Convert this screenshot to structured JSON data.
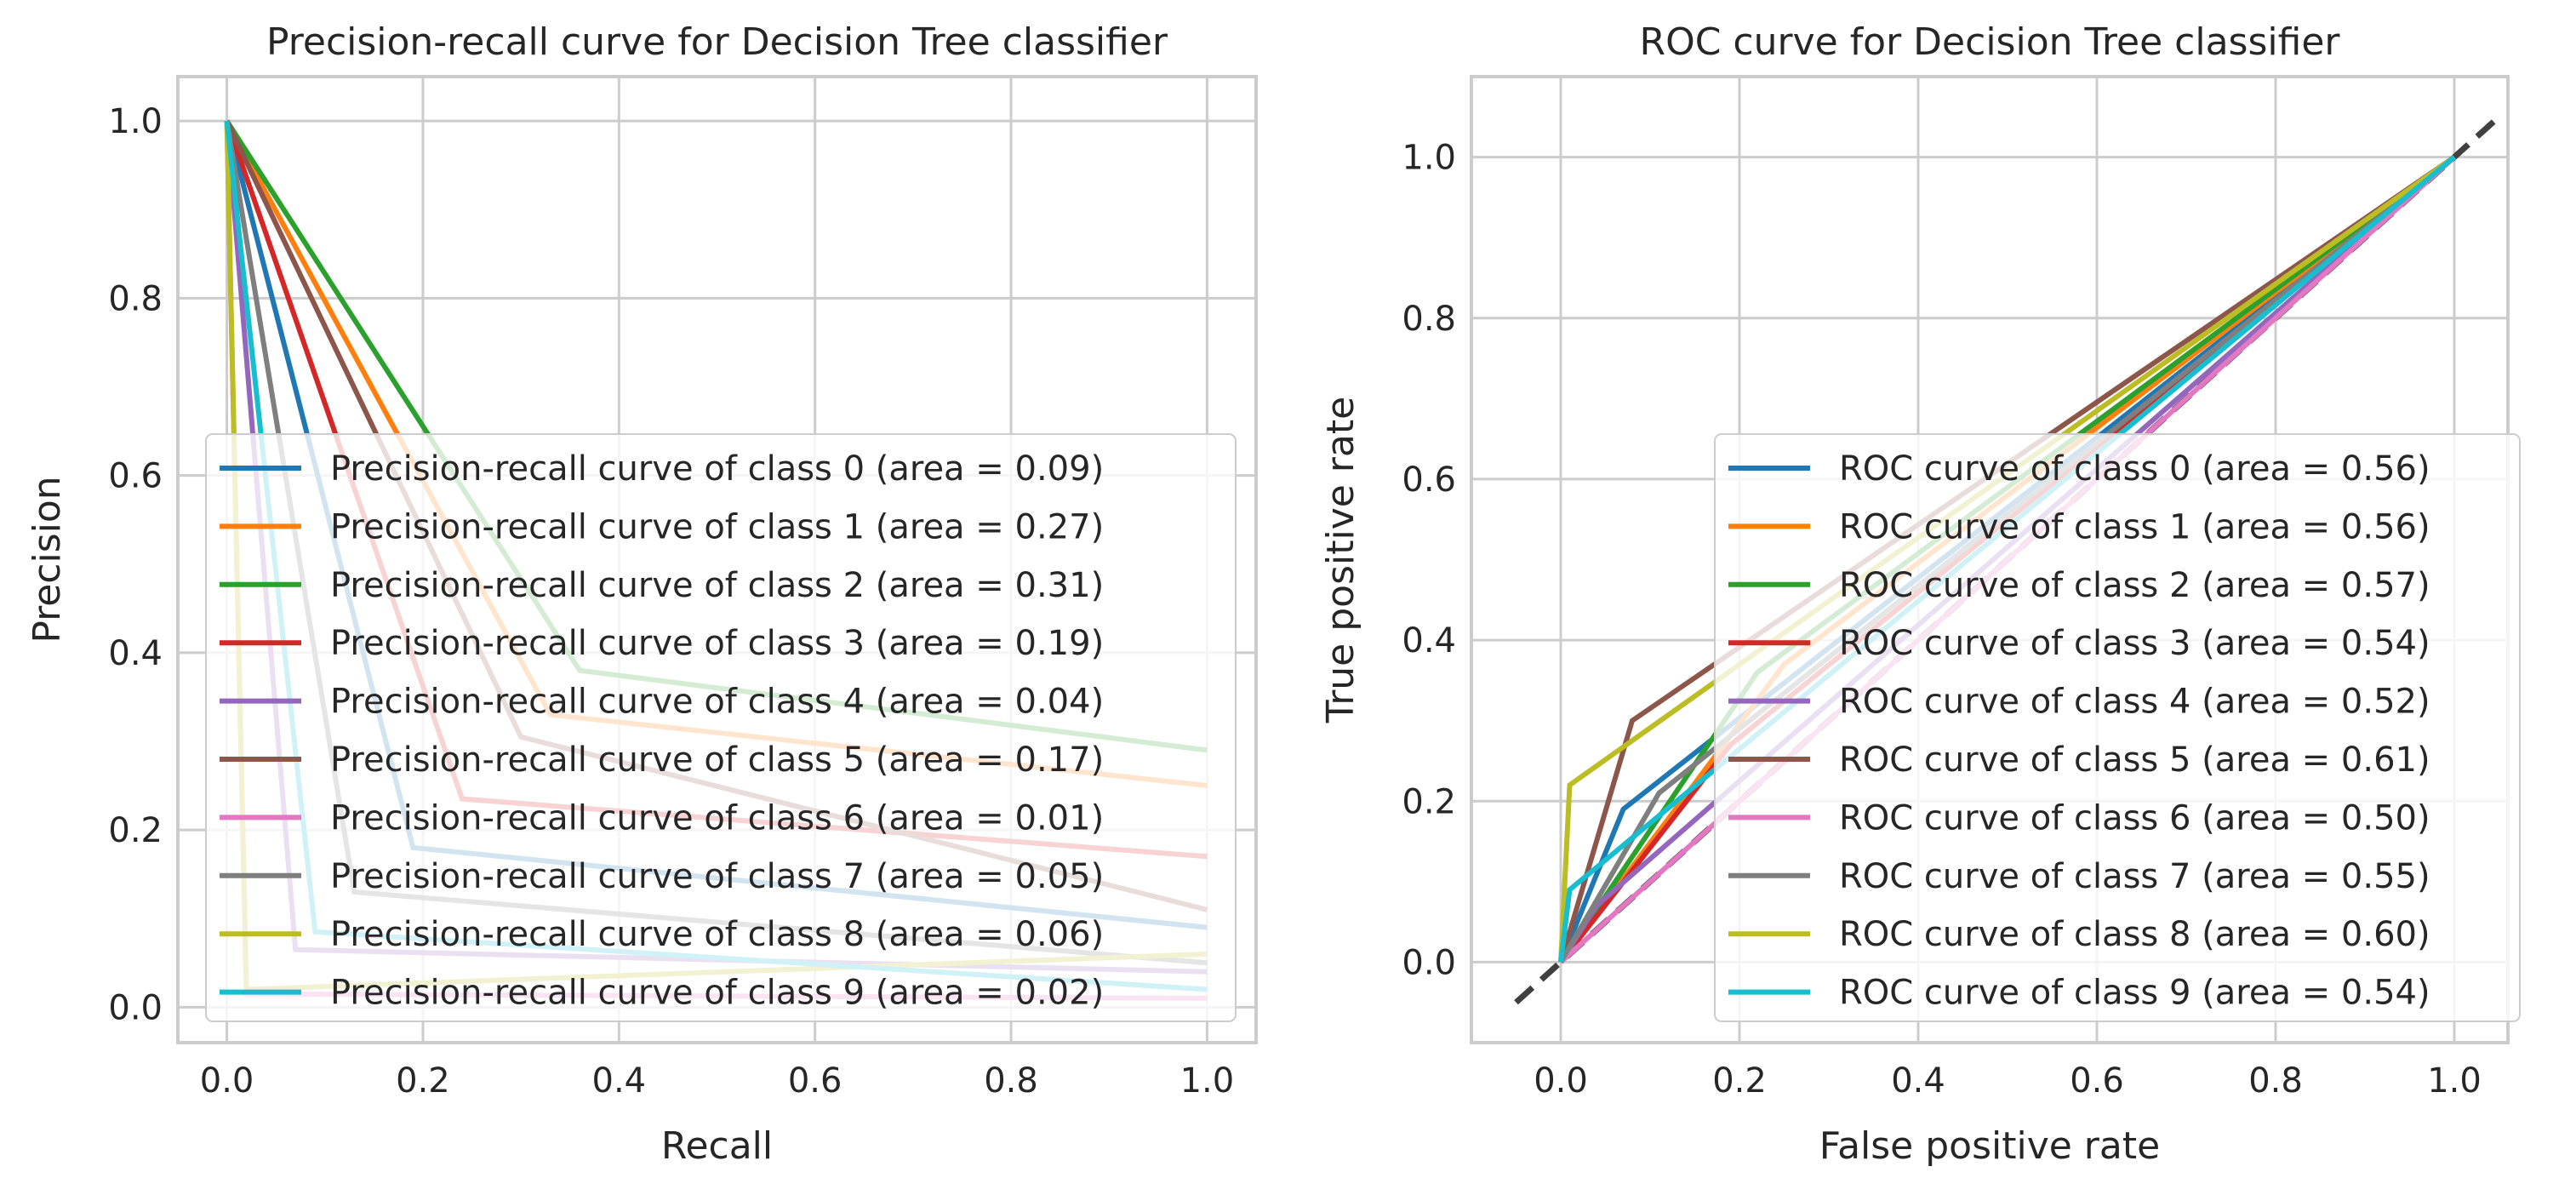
{
  "chart_data": [
    {
      "type": "line",
      "title": "Precision-recall curve for Decision Tree classifier",
      "xlabel": "Recall",
      "ylabel": "Precision",
      "xlim": [
        -0.05,
        1.05
      ],
      "ylim": [
        -0.04,
        1.05
      ],
      "xticks": [
        "0.0",
        "0.2",
        "0.4",
        "0.6",
        "0.8",
        "1.0"
      ],
      "yticks": [
        "0.0",
        "0.2",
        "0.4",
        "0.6",
        "0.8",
        "1.0"
      ],
      "grid": true,
      "legend_position": "lower-right",
      "series": [
        {
          "name": "Precision-recall curve of class 0 (area = 0.09)",
          "color": "#1f77b4",
          "x": [
            0.0,
            0.19,
            1.0
          ],
          "y": [
            1.0,
            0.18,
            0.09
          ]
        },
        {
          "name": "Precision-recall curve of class 1 (area = 0.27)",
          "color": "#ff7f0e",
          "x": [
            0.0,
            0.33,
            1.0
          ],
          "y": [
            1.0,
            0.33,
            0.25
          ]
        },
        {
          "name": "Precision-recall curve of class 2 (area = 0.31)",
          "color": "#2ca02c",
          "x": [
            0.0,
            0.36,
            1.0
          ],
          "y": [
            1.0,
            0.38,
            0.29
          ]
        },
        {
          "name": "Precision-recall curve of class 3 (area = 0.19)",
          "color": "#d62728",
          "x": [
            0.0,
            0.24,
            1.0
          ],
          "y": [
            1.0,
            0.235,
            0.17
          ]
        },
        {
          "name": "Precision-recall curve of class 4 (area = 0.04)",
          "color": "#9467bd",
          "x": [
            0.0,
            0.07,
            1.0
          ],
          "y": [
            1.0,
            0.065,
            0.04
          ]
        },
        {
          "name": "Precision-recall curve of class 5 (area = 0.17)",
          "color": "#8c564b",
          "x": [
            0.0,
            0.3,
            1.0
          ],
          "y": [
            1.0,
            0.305,
            0.11
          ]
        },
        {
          "name": "Precision-recall curve of class 6 (area = 0.01)",
          "color": "#e377c2",
          "x": [
            0.0,
            0.02,
            1.0
          ],
          "y": [
            1.0,
            0.015,
            0.01
          ]
        },
        {
          "name": "Precision-recall curve of class 7 (area = 0.05)",
          "color": "#7f7f7f",
          "x": [
            0.0,
            0.13,
            1.0
          ],
          "y": [
            1.0,
            0.13,
            0.05
          ]
        },
        {
          "name": "Precision-recall curve of class 8 (area = 0.06)",
          "color": "#bcbd22",
          "x": [
            0.0,
            0.02,
            1.0
          ],
          "y": [
            1.0,
            0.02,
            0.06
          ]
        },
        {
          "name": "Precision-recall curve of class 9 (area = 0.02)",
          "color": "#17becf",
          "x": [
            0.0,
            0.09,
            1.0
          ],
          "y": [
            1.0,
            0.085,
            0.02
          ]
        }
      ]
    },
    {
      "type": "line",
      "title": "ROC curve for Decision Tree classifier",
      "xlabel": "False positive rate",
      "ylabel": "True positive rate",
      "xlim": [
        -0.1,
        1.06
      ],
      "ylim": [
        -0.1,
        1.1
      ],
      "xticks": [
        "0.0",
        "0.2",
        "0.4",
        "0.6",
        "0.8",
        "1.0"
      ],
      "yticks": [
        "0.0",
        "0.2",
        "0.4",
        "0.6",
        "0.8",
        "1.0"
      ],
      "grid": true,
      "legend_position": "lower-right",
      "diagonal": {
        "color": "#404040",
        "x": [
          -0.05,
          1.05
        ],
        "y": [
          -0.05,
          1.05
        ]
      },
      "series": [
        {
          "name": "ROC curve of class 0 (area = 0.56)",
          "color": "#1f77b4",
          "x": [
            0.0,
            0.07,
            1.0
          ],
          "y": [
            0.0,
            0.19,
            1.0
          ]
        },
        {
          "name": "ROC curve of class 1 (area = 0.56)",
          "color": "#ff7f0e",
          "x": [
            0.0,
            0.25,
            1.0
          ],
          "y": [
            0.0,
            0.37,
            1.0
          ]
        },
        {
          "name": "ROC curve of class 2 (area = 0.57)",
          "color": "#2ca02c",
          "x": [
            0.0,
            0.22,
            1.0
          ],
          "y": [
            0.0,
            0.36,
            1.0
          ]
        },
        {
          "name": "ROC curve of class 3 (area = 0.54)",
          "color": "#d62728",
          "x": [
            0.0,
            0.19,
            1.0
          ],
          "y": [
            0.0,
            0.27,
            1.0
          ]
        },
        {
          "name": "ROC curve of class 4 (area = 0.52)",
          "color": "#9467bd",
          "x": [
            0.0,
            0.04,
            1.0
          ],
          "y": [
            0.0,
            0.07,
            1.0
          ]
        },
        {
          "name": "ROC curve of class 5 (area = 0.61)",
          "color": "#8c564b",
          "x": [
            0.0,
            0.08,
            1.0
          ],
          "y": [
            0.0,
            0.3,
            1.0
          ]
        },
        {
          "name": "ROC curve of class 6 (area = 0.50)",
          "color": "#e377c2",
          "x": [
            0.0,
            0.01,
            1.0
          ],
          "y": [
            0.0,
            0.01,
            1.0
          ]
        },
        {
          "name": "ROC curve of class 7 (area = 0.55)",
          "color": "#7f7f7f",
          "x": [
            0.0,
            0.11,
            1.0
          ],
          "y": [
            0.0,
            0.21,
            1.0
          ]
        },
        {
          "name": "ROC curve of class 8 (area = 0.60)",
          "color": "#bcbd22",
          "x": [
            0.0,
            0.01,
            1.0
          ],
          "y": [
            0.0,
            0.22,
            1.0
          ]
        },
        {
          "name": "ROC curve of class 9 (area = 0.54)",
          "color": "#17becf",
          "x": [
            0.0,
            0.01,
            1.0
          ],
          "y": [
            0.0,
            0.09,
            1.0
          ]
        }
      ]
    }
  ]
}
